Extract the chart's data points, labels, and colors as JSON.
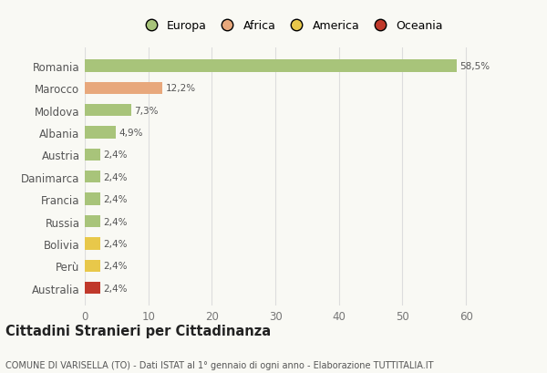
{
  "countries": [
    "Romania",
    "Marocco",
    "Moldova",
    "Albania",
    "Austria",
    "Danimarca",
    "Francia",
    "Russia",
    "Bolivia",
    "Perù",
    "Australia"
  ],
  "values": [
    58.5,
    12.2,
    7.3,
    4.9,
    2.4,
    2.4,
    2.4,
    2.4,
    2.4,
    2.4,
    2.4
  ],
  "labels": [
    "58,5%",
    "12,2%",
    "7,3%",
    "4,9%",
    "2,4%",
    "2,4%",
    "2,4%",
    "2,4%",
    "2,4%",
    "2,4%",
    "2,4%"
  ],
  "continents": [
    "Europa",
    "Africa",
    "Europa",
    "Europa",
    "Europa",
    "Europa",
    "Europa",
    "Europa",
    "America",
    "America",
    "Oceania"
  ],
  "colors": {
    "Europa": "#a8c47a",
    "Africa": "#e8a87c",
    "America": "#e8c84a",
    "Oceania": "#c0392b"
  },
  "legend_order": [
    "Europa",
    "Africa",
    "America",
    "Oceania"
  ],
  "xlim": [
    0,
    65
  ],
  "xticks": [
    0,
    10,
    20,
    30,
    40,
    50,
    60
  ],
  "title": "Cittadini Stranieri per Cittadinanza",
  "subtitle": "COMUNE DI VARISELLA (TO) - Dati ISTAT al 1° gennaio di ogni anno - Elaborazione TUTTITALIA.IT",
  "bg_color": "#f9f9f4",
  "grid_color": "#dddddd",
  "bar_height": 0.55
}
